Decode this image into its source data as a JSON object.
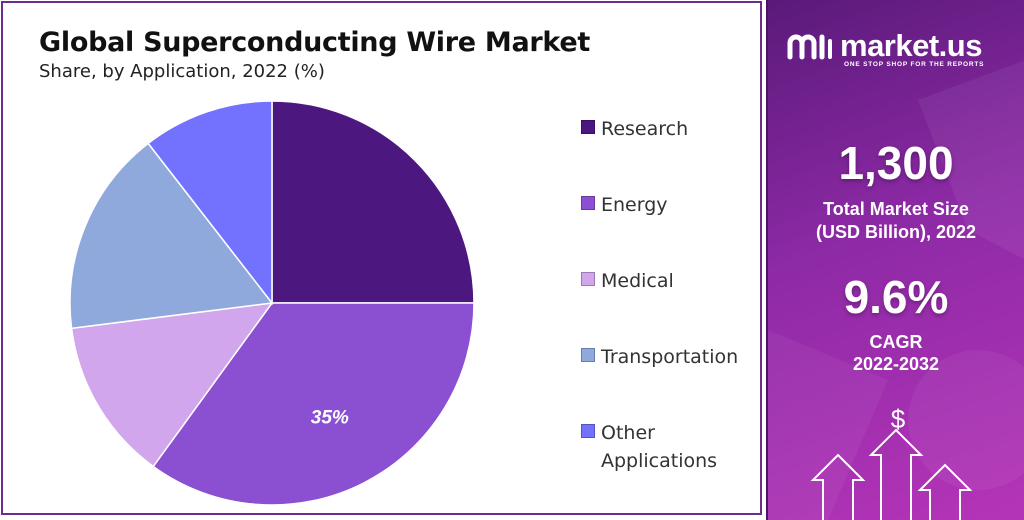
{
  "chart_data": {
    "type": "pie",
    "title": "Global Superconducting Wire Market",
    "subtitle": "Share, by Application, 2022 (%)",
    "start_angle_deg": 0,
    "direction": "clockwise",
    "slices": [
      {
        "label": "Research",
        "value": 25,
        "color": "#4d1780"
      },
      {
        "label": "Energy",
        "value": 35,
        "color": "#8b4fd1",
        "data_label": "35%"
      },
      {
        "label": "Medical",
        "value": 13,
        "color": "#d1a6ec"
      },
      {
        "label": "Transportation",
        "value": 16.5,
        "color": "#8fa9dc"
      },
      {
        "label": "Other Applications",
        "value": 10.5,
        "color": "#7272ff"
      }
    ],
    "legend_position": "right"
  },
  "brand": {
    "name": "market.us",
    "tagline": "ONE STOP SHOP FOR THE REPORTS"
  },
  "stats": {
    "market_size_value": "1,300",
    "market_size_label_line1": "Total Market Size",
    "market_size_label_line2": "(USD Billion), 2022",
    "cagr_value": "9.6%",
    "cagr_label_line1": "CAGR",
    "cagr_label_line2": "2022-2032"
  },
  "decor": {
    "currency_symbol": "$"
  }
}
